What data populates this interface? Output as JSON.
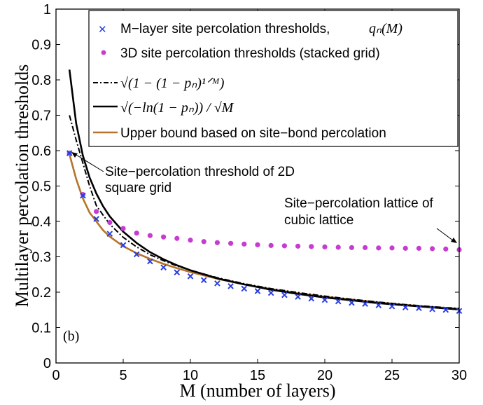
{
  "chart_data": {
    "type": "line",
    "xlabel": "M (number of layers)",
    "ylabel": "Multilayer percolation thresholds",
    "xlim": [
      0,
      30
    ],
    "ylim": [
      0,
      1
    ],
    "xticks": [
      "0",
      "5",
      "10",
      "15",
      "20",
      "25",
      "30"
    ],
    "yticks": [
      "0",
      "0.1",
      "0.2",
      "0.3",
      "0.4",
      "0.5",
      "0.6",
      "0.7",
      "0.8",
      "0.9",
      "1"
    ],
    "panel_label": "(b)",
    "legend_placement": "top-right",
    "series": [
      {
        "name": "M−layer site percolation thresholds, q_c(M)",
        "legend_label": "M−layer site percolation thresholds,",
        "legend_math": "qₙ(M)",
        "style": "markers-x",
        "color": "#2a3ee0",
        "x": [
          1,
          2,
          3,
          4,
          5,
          6,
          7,
          8,
          9,
          10,
          11,
          12,
          13,
          14,
          15,
          16,
          17,
          18,
          19,
          20,
          21,
          22,
          23,
          24,
          25,
          26,
          27,
          28,
          29,
          30
        ],
        "values": [
          0.593,
          0.473,
          0.407,
          0.365,
          0.333,
          0.307,
          0.287,
          0.27,
          0.256,
          0.245,
          0.234,
          0.225,
          0.217,
          0.21,
          0.203,
          0.198,
          0.192,
          0.187,
          0.182,
          0.178,
          0.174,
          0.17,
          0.167,
          0.163,
          0.16,
          0.157,
          0.155,
          0.152,
          0.15,
          0.147
        ]
      },
      {
        "name": "3D site percolation thresholds (stacked grid)",
        "legend_label": "3D site percolation thresholds (stacked grid)",
        "style": "markers-dot",
        "color": "#c73bd1",
        "x": [
          1,
          2,
          3,
          4,
          5,
          6,
          7,
          8,
          9,
          10,
          11,
          12,
          13,
          14,
          15,
          16,
          17,
          18,
          19,
          20,
          21,
          22,
          23,
          24,
          25,
          26,
          27,
          28,
          29,
          30
        ],
        "values": [
          0.593,
          0.476,
          0.428,
          0.397,
          0.38,
          0.367,
          0.36,
          0.356,
          0.352,
          0.347,
          0.343,
          0.34,
          0.338,
          0.336,
          0.334,
          0.332,
          0.331,
          0.33,
          0.329,
          0.328,
          0.327,
          0.326,
          0.326,
          0.325,
          0.325,
          0.324,
          0.324,
          0.323,
          0.322,
          0.32
        ]
      },
      {
        "name": "sqrt(1 − (1 − p_c)^(1/M))",
        "legend_math": "√(1 − (1 − pₙ)¹ᐟᴹ)",
        "style": "dash-dot",
        "color": "#000000",
        "x": [
          1,
          1.5,
          2,
          2.5,
          3,
          3.5,
          4,
          5,
          6,
          7,
          8,
          9,
          10,
          12,
          14,
          16,
          18,
          20,
          22,
          24,
          26,
          28,
          30
        ],
        "values": [
          0.7,
          0.63,
          0.565,
          0.5,
          0.445,
          0.418,
          0.392,
          0.355,
          0.328,
          0.306,
          0.289,
          0.274,
          0.262,
          0.241,
          0.224,
          0.21,
          0.199,
          0.189,
          0.18,
          0.172,
          0.165,
          0.159,
          0.154
        ]
      },
      {
        "name": "sqrt(−ln(1 − p_c)) / sqrt(M)",
        "legend_math": "√(−ln(1 − pₙ)) / √M",
        "style": "solid",
        "color": "#000000",
        "x": [
          1,
          1.5,
          2,
          2.5,
          3,
          3.5,
          4,
          5,
          6,
          7,
          8,
          9,
          10,
          12,
          14,
          16,
          18,
          20,
          22,
          24,
          26,
          28,
          30
        ],
        "values": [
          0.829,
          0.677,
          0.586,
          0.524,
          0.479,
          0.443,
          0.414,
          0.371,
          0.339,
          0.313,
          0.293,
          0.276,
          0.262,
          0.239,
          0.222,
          0.207,
          0.195,
          0.185,
          0.177,
          0.169,
          0.163,
          0.157,
          0.151
        ]
      },
      {
        "name": "Upper bound based on site−bond percolation",
        "legend_label": "Upper bound based on site−bond percolation",
        "style": "solid",
        "color": "#b5742a",
        "x": [
          1,
          1.5,
          2,
          2.5,
          3,
          3.5,
          4,
          5,
          6,
          7,
          8,
          9,
          10,
          12,
          14,
          16,
          18,
          20,
          22,
          24,
          26,
          28,
          30
        ],
        "values": [
          0.59,
          0.52,
          0.465,
          0.425,
          0.4,
          0.375,
          0.357,
          0.33,
          0.31,
          0.294,
          0.28,
          0.268,
          0.257,
          0.238,
          0.222,
          0.209,
          0.197,
          0.187,
          0.179,
          0.171,
          0.164,
          0.158,
          0.153
        ]
      }
    ],
    "annotations": [
      {
        "lines": [
          "Site−percolation threshold of 2D",
          "square grid"
        ],
        "target_x": 1,
        "target_y": 0.593
      },
      {
        "lines": [
          "Site−percolation lattice of",
          "cubic lattice"
        ],
        "target_x": 30,
        "target_y": 0.32
      }
    ]
  }
}
